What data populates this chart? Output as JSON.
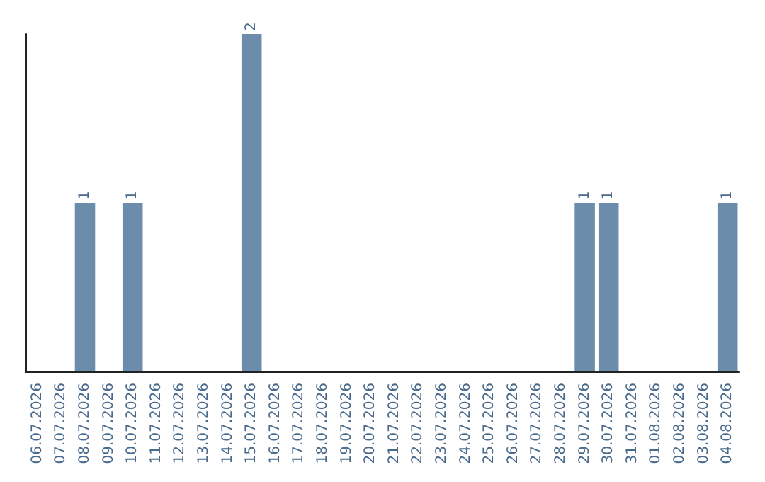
{
  "chart_data": {
    "type": "bar",
    "categories": [
      "06.07.2026",
      "07.07.2026",
      "08.07.2026",
      "09.07.2026",
      "10.07.2026",
      "11.07.2026",
      "12.07.2026",
      "13.07.2026",
      "14.07.2026",
      "15.07.2026",
      "16.07.2026",
      "17.07.2026",
      "18.07.2026",
      "19.07.2026",
      "20.07.2026",
      "21.07.2026",
      "22.07.2026",
      "23.07.2026",
      "24.07.2026",
      "25.07.2026",
      "26.07.2026",
      "27.07.2026",
      "28.07.2026",
      "29.07.2026",
      "30.07.2026",
      "31.07.2026",
      "01.08.2026",
      "02.08.2026",
      "03.08.2026",
      "04.08.2026"
    ],
    "values": [
      0,
      0,
      1,
      0,
      1,
      0,
      0,
      0,
      0,
      2,
      0,
      0,
      0,
      0,
      0,
      0,
      0,
      0,
      0,
      0,
      0,
      0,
      0,
      1,
      1,
      0,
      0,
      0,
      0,
      1
    ],
    "value_labels": [
      null,
      null,
      "1",
      null,
      "1",
      null,
      null,
      null,
      null,
      "2",
      null,
      null,
      null,
      null,
      null,
      null,
      null,
      null,
      null,
      null,
      null,
      null,
      null,
      "1",
      "1",
      null,
      null,
      null,
      null,
      "1"
    ],
    "color": "#6b8cab",
    "tick_labels": "x",
    "grid": false
  }
}
